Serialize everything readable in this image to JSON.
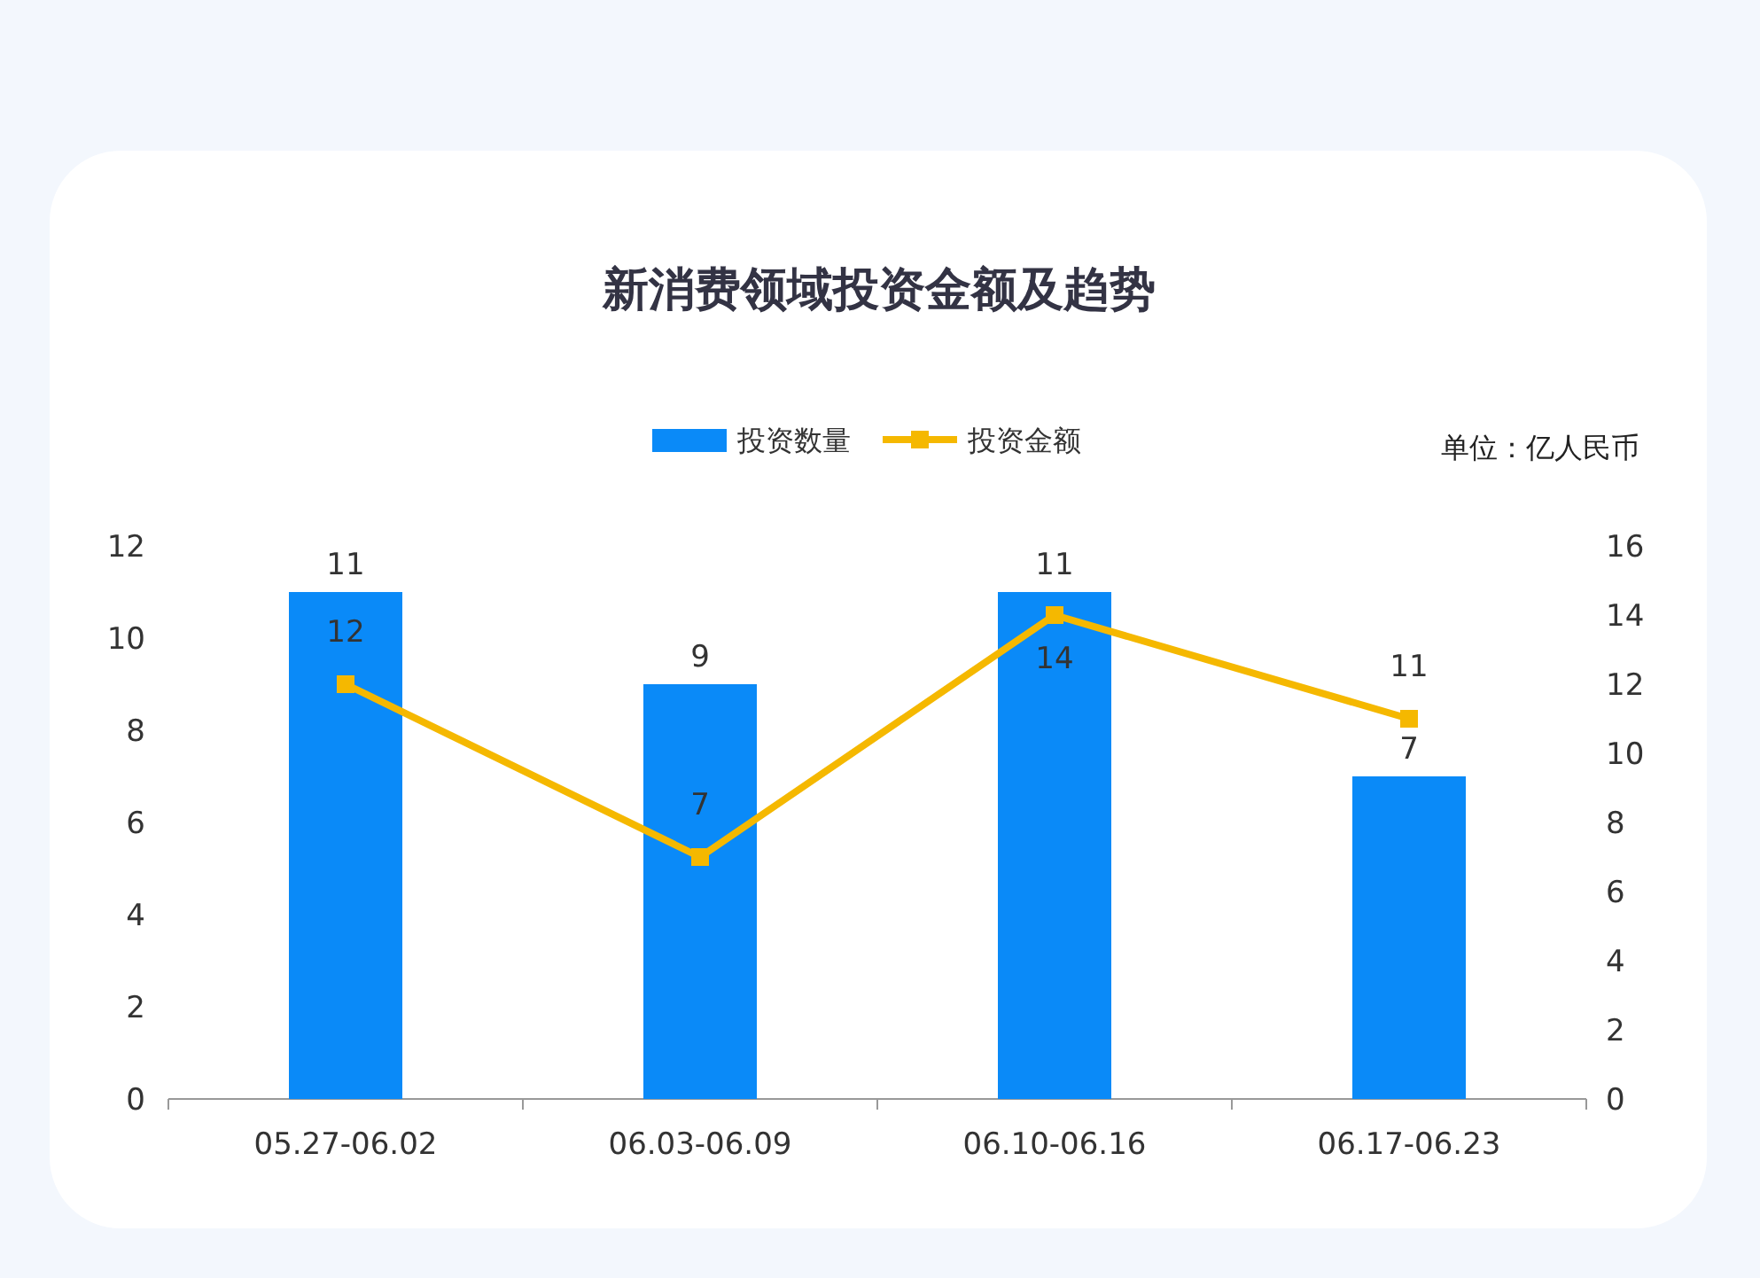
{
  "chart_data": {
    "type": "bar",
    "title": "新消费领域投资金额及趋势",
    "categories": [
      "05.27-06.02",
      "06.03-06.09",
      "06.10-06.16",
      "06.17-06.23"
    ],
    "series": [
      {
        "name": "投资数量",
        "color": "#0a8af8",
        "values": [
          11,
          9,
          11,
          7
        ]
      },
      {
        "name": "投资金额",
        "type": "line",
        "axis": "y2",
        "color": "#f5b800",
        "marker": "square",
        "values": [
          12,
          7,
          14,
          11
        ]
      }
    ],
    "ylim": [
      0,
      12
    ],
    "yticks": [
      0,
      2,
      4,
      6,
      8,
      10,
      12
    ],
    "y2lim": [
      0,
      16
    ],
    "y2ticks": [
      0,
      2,
      4,
      6,
      8,
      10,
      12,
      14,
      16
    ],
    "data_labels": true,
    "legend": "top",
    "grid": false,
    "annotations": [
      "单位：亿人民币"
    ]
  }
}
